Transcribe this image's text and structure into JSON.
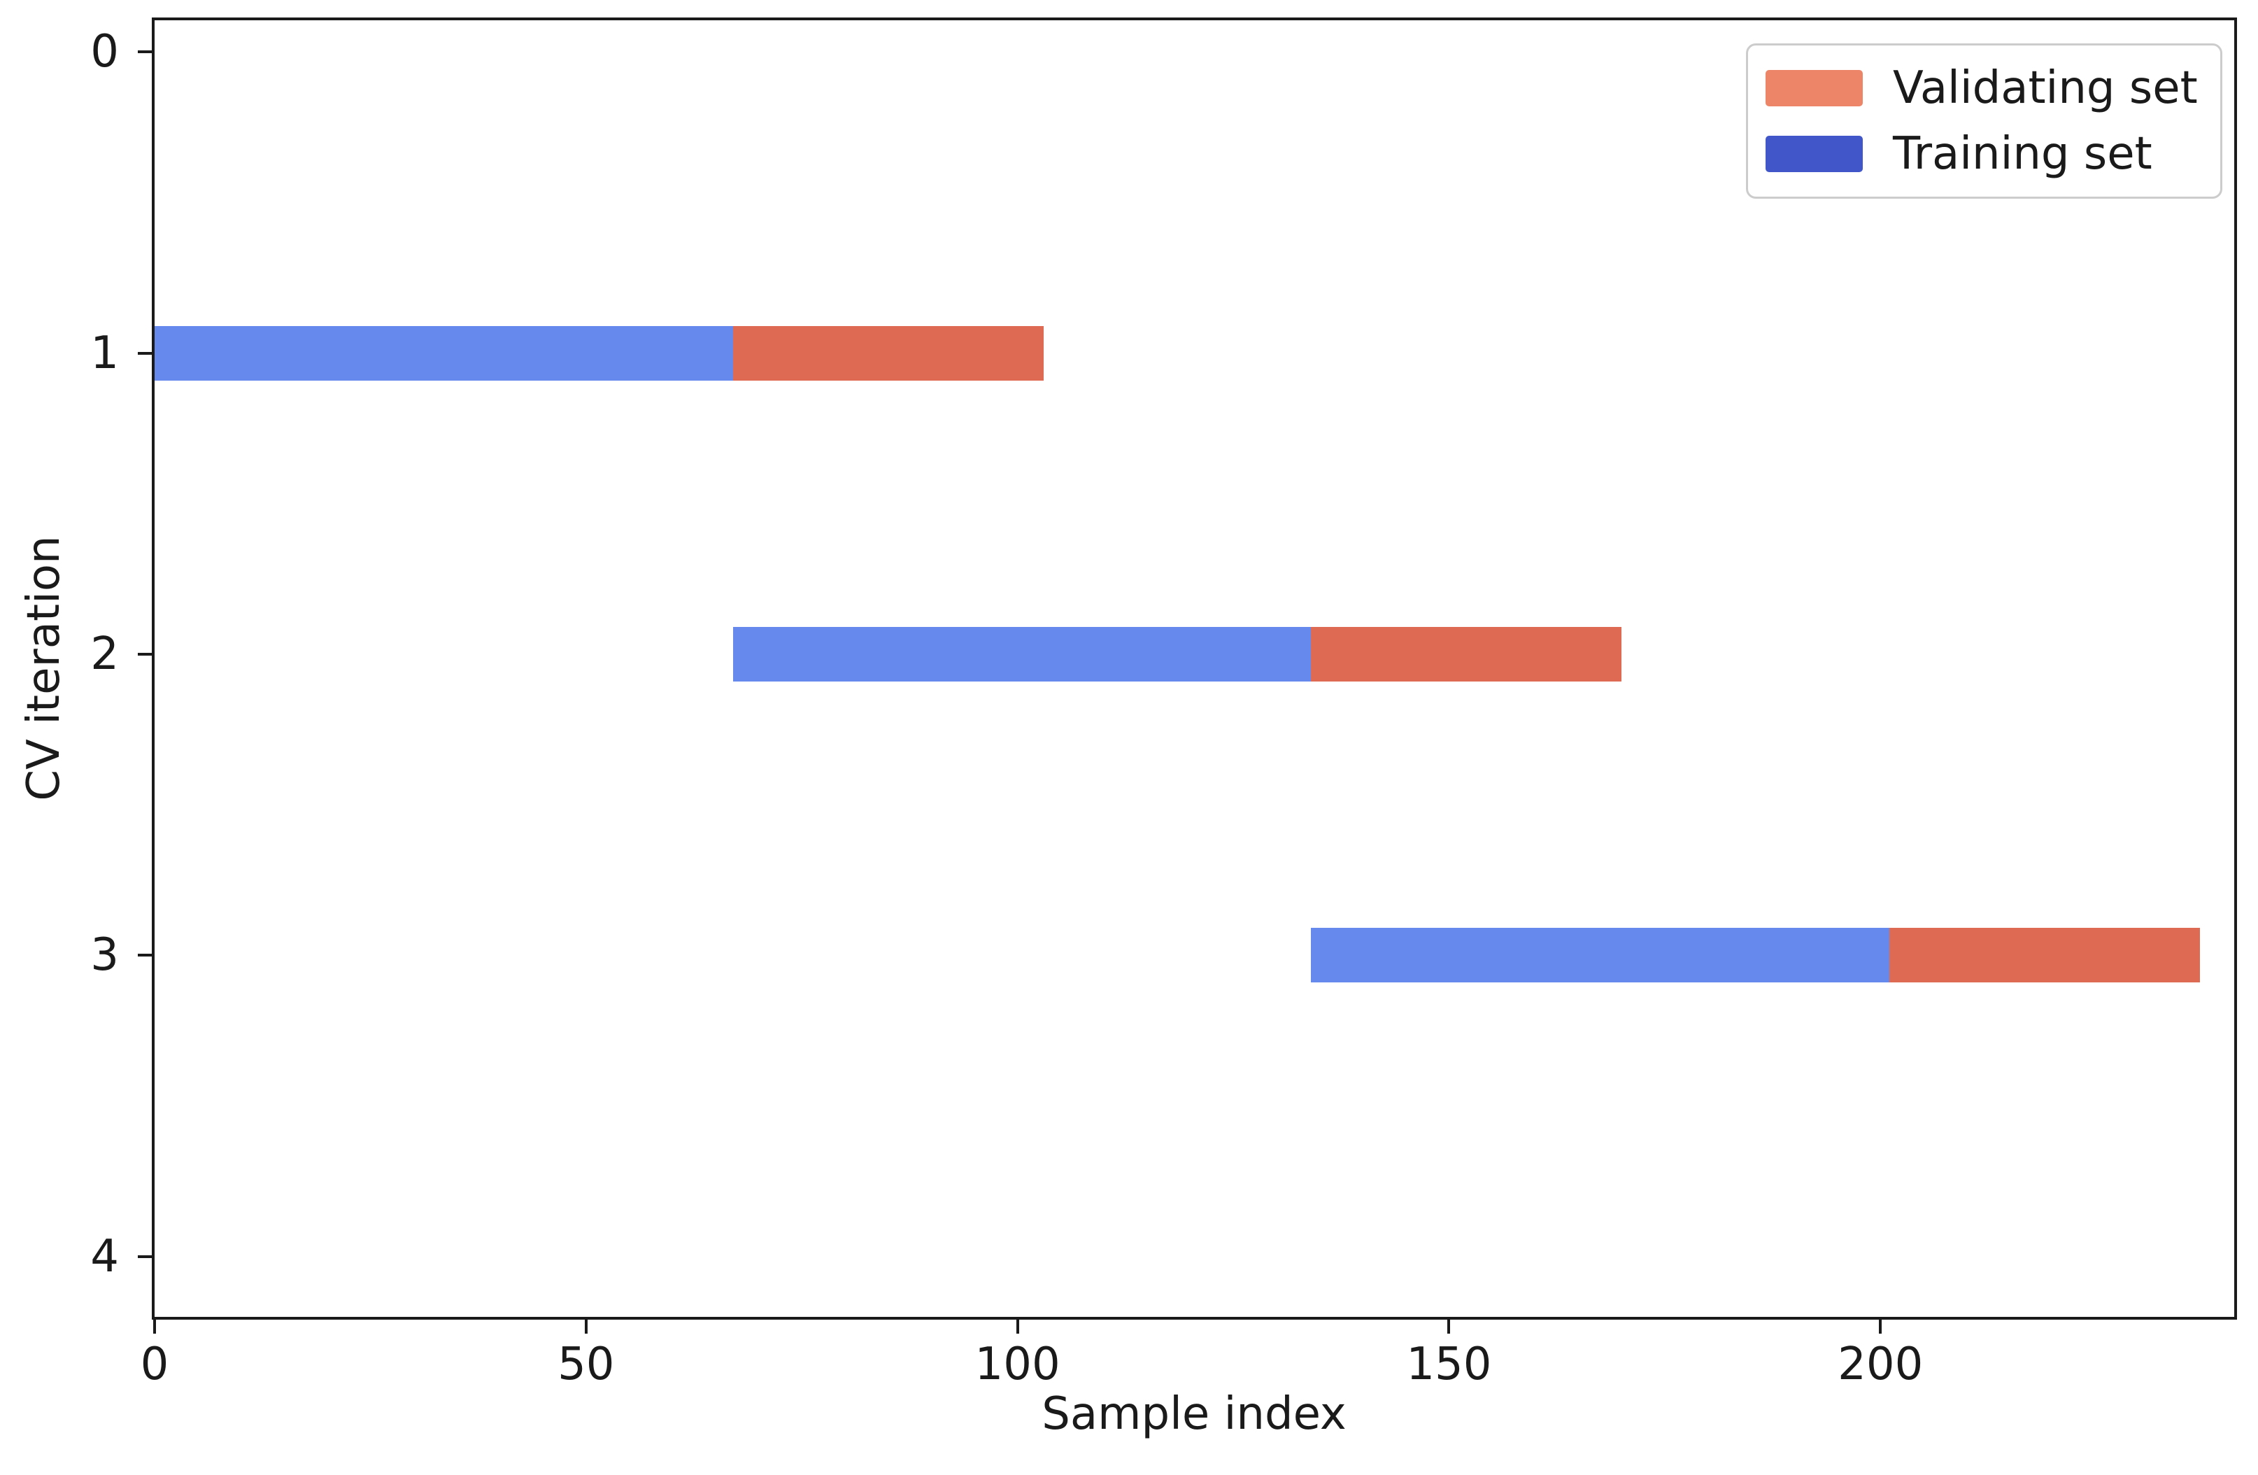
{
  "chart_data": {
    "type": "bar",
    "orientation": "horizontal",
    "description": "Time series cross-validation splits: training and validating sample index ranges per CV iteration",
    "xlabel": "Sample index",
    "ylabel": "CV iteration",
    "xlim": [
      0,
      241
    ],
    "ylim_top": -0.105,
    "ylim_bottom": 4.2,
    "y_axis_inverted": true,
    "grid": false,
    "x_ticks": [
      0,
      50,
      100,
      150,
      200
    ],
    "y_ticks": [
      0,
      1,
      2,
      3,
      4
    ],
    "bar_height_data_units": 0.18,
    "series": [
      {
        "name": "Training set",
        "color": "#6689EE",
        "segments": [
          {
            "cv_iteration": 1,
            "start": 0,
            "end": 67
          },
          {
            "cv_iteration": 2,
            "start": 67,
            "end": 134
          },
          {
            "cv_iteration": 3,
            "start": 134,
            "end": 201
          }
        ]
      },
      {
        "name": "Validating set",
        "color": "#DF6A54",
        "segments": [
          {
            "cv_iteration": 1,
            "start": 67,
            "end": 103
          },
          {
            "cv_iteration": 2,
            "start": 134,
            "end": 170
          },
          {
            "cv_iteration": 3,
            "start": 201,
            "end": 237
          }
        ]
      }
    ],
    "legend": {
      "position": "upper right",
      "entries": [
        {
          "label": "Validating set",
          "swatch_color": "#ED8569"
        },
        {
          "label": "Training set",
          "swatch_color": "#4156C8"
        }
      ]
    }
  }
}
